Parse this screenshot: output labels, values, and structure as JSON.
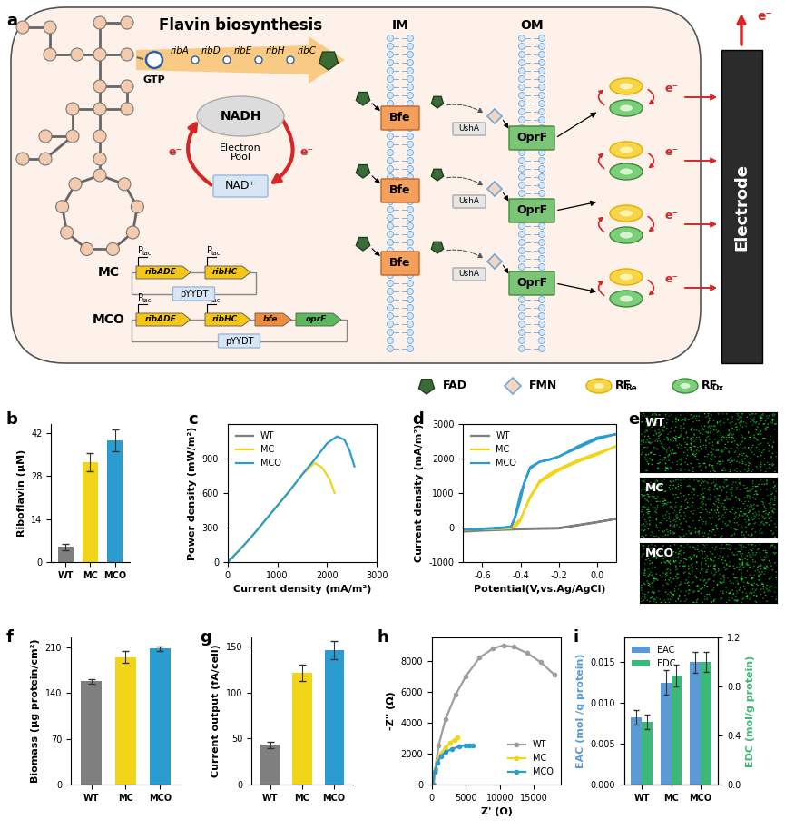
{
  "diagram": {
    "panel": "a",
    "title": "Flavin biosynthesis",
    "precursor": "GTP",
    "genes": [
      "ribA",
      "ribD",
      "ribE",
      "ribH",
      "ribC"
    ],
    "electron_pool": {
      "top": "NADH",
      "center": "Electron\nPool",
      "bottom": "NAD⁺"
    },
    "electron": "e⁻",
    "promoter": {
      "main": "P",
      "sub": "tac"
    },
    "plasmids": [
      {
        "name": "MC",
        "genes": [
          "ribADE",
          "ribHC"
        ],
        "backbone": "pYYDT"
      },
      {
        "name": "MCO",
        "genes": [
          "ribADE",
          "ribHC",
          "bfe",
          "oprF"
        ],
        "backbone": "pYYDT"
      }
    ],
    "membranes": [
      "IM",
      "OM"
    ],
    "inner_protein": "Bfe",
    "enzyme": "UshA",
    "outer_protein": "OprF",
    "electrode": "Electrode",
    "legend": [
      {
        "main": "FAD"
      },
      {
        "main": "FMN"
      },
      {
        "main": "RF",
        "sub": "Re"
      },
      {
        "main": "RF",
        "sub": "Ox"
      }
    ]
  },
  "images": {
    "panel": "e",
    "labels": [
      "WT",
      "MC",
      "MCO"
    ]
  },
  "chart_data": [
    {
      "panel": "b",
      "type": "bar",
      "ylabel": "Riboflavin (μM)",
      "categories": [
        "WT",
        "MC",
        "MCO"
      ],
      "values": [
        5,
        32.5,
        39.5
      ],
      "errors": [
        1,
        3,
        3.5
      ],
      "colors": [
        "#7f7f7f",
        "#f2d518",
        "#2b9ccf"
      ],
      "ylim": [
        0,
        45
      ],
      "yticks": [
        0,
        14,
        28,
        42
      ]
    },
    {
      "panel": "c",
      "type": "line",
      "xlabel": "Current density (mA/m²)",
      "ylabel": "Power density (mW/m²)",
      "xlim": [
        0,
        3000
      ],
      "xticks": [
        0,
        1000,
        2000,
        3000
      ],
      "ylim": [
        0,
        1200
      ],
      "yticks": [
        0,
        300,
        600,
        900
      ],
      "legend": "upper left",
      "series": [
        {
          "name": "WT",
          "color": "#7f7f7f",
          "x": [
            0,
            30,
            60,
            90,
            100
          ],
          "values": [
            0,
            15,
            30,
            40,
            35
          ]
        },
        {
          "name": "MC",
          "color": "#f2d518",
          "x": [
            0,
            250,
            500,
            750,
            1000,
            1250,
            1500,
            1750,
            1900,
            2050,
            2150
          ],
          "values": [
            0,
            110,
            230,
            360,
            490,
            620,
            760,
            860,
            820,
            720,
            600
          ]
        },
        {
          "name": "MCO",
          "color": "#2b9ccf",
          "x": [
            0,
            250,
            500,
            750,
            1000,
            1250,
            1500,
            1750,
            2000,
            2200,
            2350,
            2450,
            2550
          ],
          "values": [
            0,
            110,
            230,
            360,
            490,
            620,
            760,
            890,
            1030,
            1090,
            1060,
            970,
            830
          ]
        }
      ]
    },
    {
      "panel": "d",
      "type": "line",
      "xlabel": "Potential(V,vs.Ag/AgCl)",
      "ylabel": "Current density (mA/m²)",
      "xlim": [
        -0.7,
        0.1
      ],
      "xticks": [
        -0.6,
        -0.4,
        -0.2,
        0.0
      ],
      "ylim": [
        -1000,
        3000
      ],
      "yticks": [
        -1000,
        0,
        1000,
        2000,
        3000
      ],
      "legend": "upper left",
      "series": [
        {
          "name": "WT",
          "color": "#7f7f7f",
          "x": [
            -0.7,
            -0.6,
            -0.5,
            -0.4,
            -0.3,
            -0.2,
            -0.15,
            -0.1,
            0.0,
            0.1,
            0.0,
            -0.2,
            -0.4,
            -0.6,
            -0.7
          ],
          "values": [
            -120,
            -90,
            -70,
            -50,
            -40,
            -30,
            20,
            60,
            150,
            250,
            160,
            -10,
            -30,
            -60,
            -100
          ]
        },
        {
          "name": "MC",
          "color": "#f2d518",
          "x": [
            -0.7,
            -0.6,
            -0.5,
            -0.45,
            -0.42,
            -0.4,
            -0.38,
            -0.35,
            -0.3,
            -0.25,
            -0.2,
            -0.1,
            0.0,
            0.1,
            0.0,
            -0.1,
            -0.2,
            -0.3,
            -0.35,
            -0.4,
            -0.45,
            -0.6,
            -0.7
          ],
          "values": [
            -60,
            -50,
            -40,
            -20,
            50,
            200,
            500,
            900,
            1350,
            1550,
            1700,
            1950,
            2150,
            2350,
            2100,
            1900,
            1650,
            1300,
            850,
            250,
            -10,
            -40,
            -60
          ]
        },
        {
          "name": "MCO",
          "color": "#2b9ccf",
          "x": [
            -0.7,
            -0.6,
            -0.5,
            -0.45,
            -0.43,
            -0.4,
            -0.38,
            -0.35,
            -0.3,
            -0.25,
            -0.2,
            -0.1,
            0.0,
            0.1,
            0.0,
            -0.1,
            -0.2,
            -0.3,
            -0.35,
            -0.4,
            -0.43,
            -0.45,
            -0.6,
            -0.7
          ],
          "values": [
            -60,
            -40,
            -20,
            20,
            250,
            800,
            1300,
            1700,
            1900,
            1950,
            2050,
            2300,
            2550,
            2700,
            2600,
            2350,
            2050,
            1900,
            1750,
            1000,
            300,
            20,
            -30,
            -50
          ]
        }
      ]
    },
    {
      "panel": "f",
      "type": "bar",
      "ylabel": "Biomass (μg protein/cm²)",
      "categories": [
        "WT",
        "MC",
        "MCO"
      ],
      "values": [
        158,
        195,
        208
      ],
      "errors": [
        4,
        9,
        4
      ],
      "colors": [
        "#7f7f7f",
        "#f2d518",
        "#2b9ccf"
      ],
      "ylim": [
        0,
        225
      ],
      "yticks": [
        0,
        70,
        140,
        210
      ]
    },
    {
      "panel": "g",
      "type": "bar",
      "ylabel": "Current output (fA/cell)",
      "categories": [
        "WT",
        "MC",
        "MCO"
      ],
      "values": [
        43,
        122,
        146
      ],
      "errors": [
        3,
        9,
        10
      ],
      "colors": [
        "#7f7f7f",
        "#f2d518",
        "#2b9ccf"
      ],
      "ylim": [
        0,
        160
      ],
      "yticks": [
        0,
        50,
        100,
        150
      ]
    },
    {
      "panel": "h",
      "type": "line",
      "xlabel": "Z' (Ω)",
      "ylabel": "-Z'' (Ω)",
      "xlim": [
        0,
        19000
      ],
      "xticks": [
        0,
        5000,
        10000,
        15000
      ],
      "ylim": [
        0,
        9500
      ],
      "yticks": [
        0,
        2000,
        4000,
        6000,
        8000
      ],
      "legend": "lower right",
      "marker": "o",
      "series": [
        {
          "name": "WT",
          "color": "#9e9e9e",
          "x": [
            300,
            500,
            1000,
            2000,
            3500,
            5000,
            7000,
            9000,
            10500,
            12000,
            14000,
            16000,
            18000
          ],
          "values": [
            0,
            1000,
            2500,
            4200,
            5800,
            7000,
            8200,
            8800,
            9000,
            8900,
            8500,
            7900,
            7100
          ]
        },
        {
          "name": "MC",
          "color": "#f2d518",
          "x": [
            200,
            400,
            800,
            1300,
            2000,
            2700,
            3300,
            3800
          ],
          "values": [
            0,
            800,
            1500,
            2000,
            2400,
            2700,
            2900,
            3050
          ]
        },
        {
          "name": "MCO",
          "color": "#2b9ccf",
          "x": [
            200,
            400,
            800,
            1300,
            2000,
            3000,
            4000,
            5000,
            5500,
            6000
          ],
          "values": [
            0,
            800,
            1400,
            1800,
            2100,
            2300,
            2450,
            2550,
            2550,
            2550
          ]
        }
      ]
    },
    {
      "panel": "i",
      "type": "bar",
      "categories": [
        "WT",
        "MC",
        "MCO"
      ],
      "legend": "upper left",
      "ylabel": "EAC (mol /g protein)",
      "y2label": "EDC (mol/g protein)",
      "ylim": [
        0,
        0.018
      ],
      "yticks": [
        {
          "value": 0,
          "label": "0.000"
        },
        {
          "value": 0.005,
          "label": "0.005"
        },
        {
          "value": 0.01,
          "label": "0.010"
        },
        {
          "value": 0.015,
          "label": "0.015"
        }
      ],
      "y2lim": [
        0,
        1.2
      ],
      "y2ticks": [
        0.0,
        0.4,
        0.8,
        1.2
      ],
      "series": [
        {
          "name": "EAC",
          "color": "#5b9bd5",
          "values": [
            0.0082,
            0.0125,
            0.015
          ],
          "errors": [
            0.0009,
            0.0015,
            0.0013
          ]
        },
        {
          "name": "EDC",
          "color": "#3cb878",
          "axis": "y2",
          "values": [
            0.51,
            0.89,
            1.0
          ],
          "errors": [
            0.06,
            0.09,
            0.08
          ]
        }
      ]
    }
  ]
}
